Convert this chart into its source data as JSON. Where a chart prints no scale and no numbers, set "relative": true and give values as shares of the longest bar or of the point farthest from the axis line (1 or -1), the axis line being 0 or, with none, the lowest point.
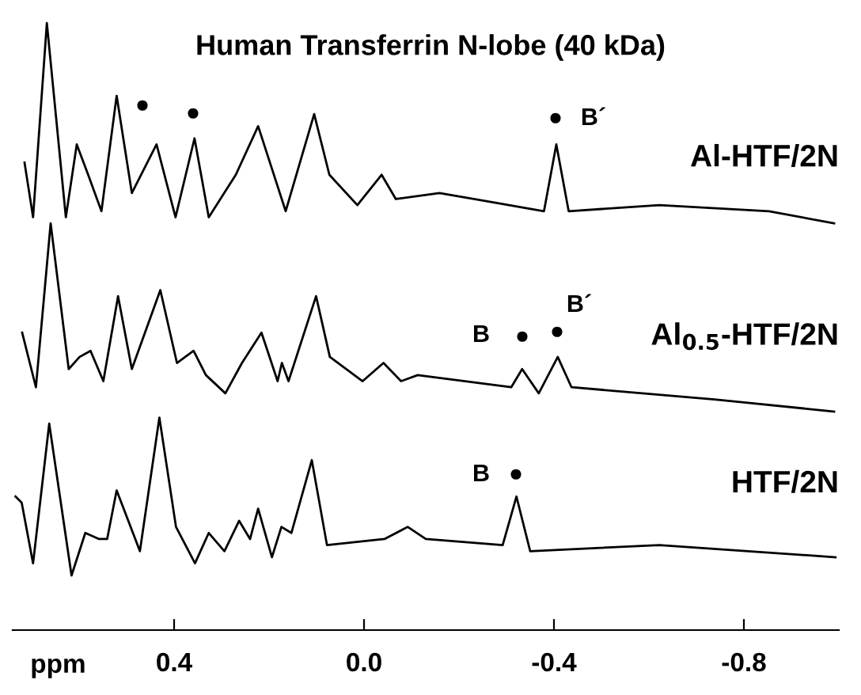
{
  "chart_data": {
    "type": "line",
    "title": "Human Transferrin N-lobe (40 kDa)",
    "relative": true,
    "xlabel": "ppm",
    "xlim": [
      0.74,
      -1.0
    ],
    "xticks": [
      0.4,
      {
        "value": 0.0,
        "label": "0.0"
      },
      -0.4,
      -0.8
    ],
    "tick_labels": "x",
    "grid": false,
    "series": [
      {
        "name": "Al-HTF/2N",
        "color": "#000000",
        "x": [
          0.715,
          0.697,
          0.668,
          0.628,
          0.605,
          0.581,
          0.553,
          0.521,
          0.489,
          0.437,
          0.397,
          0.357,
          0.327,
          0.27,
          0.223,
          0.165,
          0.105,
          0.073,
          0.014,
          -0.037,
          -0.067,
          -0.159,
          -0.379,
          -0.405,
          -0.431,
          -0.622,
          -0.853,
          -0.99
        ],
        "values": [
          0.77,
          0.68,
          1,
          0.68,
          0.8,
          0.75,
          0.69,
          0.88,
          0.72,
          0.8,
          0.68,
          0.81,
          0.68,
          0.75,
          0.83,
          0.69,
          0.85,
          0.75,
          0.7,
          0.75,
          0.71,
          0.72,
          0.69,
          0.8,
          0.69,
          0.7,
          0.69,
          0.67
        ]
      },
      {
        "name": "Al$_{0.5}$-HTF/2N",
        "color": "#000000",
        "x": [
          0.72,
          0.691,
          0.66,
          0.622,
          0.599,
          0.576,
          0.549,
          0.518,
          0.489,
          0.429,
          0.394,
          0.359,
          0.333,
          0.292,
          0.257,
          0.216,
          0.182,
          0.173,
          0.159,
          0.101,
          0.072,
          0.003,
          -0.041,
          -0.078,
          -0.113,
          -0.31,
          -0.333,
          -0.368,
          -0.408,
          -0.437,
          -0.738,
          -0.99
        ],
        "values": [
          0.49,
          0.4,
          0.67,
          0.43,
          0.45,
          0.46,
          0.41,
          0.55,
          0.43,
          0.56,
          0.44,
          0.46,
          0.42,
          0.39,
          0.44,
          0.49,
          0.41,
          0.44,
          0.41,
          0.55,
          0.45,
          0.41,
          0.44,
          0.41,
          0.42,
          0.4,
          0.43,
          0.39,
          0.45,
          0.4,
          0.38,
          0.36
        ]
      },
      {
        "name": "HTF/2N",
        "color": "#000000",
        "x": [
          0.734,
          0.721,
          0.697,
          0.663,
          0.616,
          0.587,
          0.558,
          0.541,
          0.521,
          0.472,
          0.431,
          0.396,
          0.356,
          0.327,
          0.294,
          0.263,
          0.24,
          0.223,
          0.194,
          0.174,
          0.153,
          0.11,
          0.078,
          -0.043,
          -0.092,
          -0.13,
          -0.292,
          -0.321,
          -0.35,
          -0.622,
          -0.993
        ],
        "values": [
          0.22,
          0.21,
          0.11,
          0.34,
          0.09,
          0.16,
          0.15,
          0.15,
          0.23,
          0.13,
          0.35,
          0.17,
          0.11,
          0.16,
          0.13,
          0.18,
          0.15,
          0.2,
          0.12,
          0.17,
          0.16,
          0.28,
          0.14,
          0.15,
          0.17,
          0.15,
          0.14,
          0.22,
          0.13,
          0.14,
          0.12
        ]
      }
    ],
    "annotations": [
      "●",
      "●",
      "●",
      "B´",
      "B",
      "●",
      "●",
      "B´",
      "B",
      "●"
    ]
  }
}
